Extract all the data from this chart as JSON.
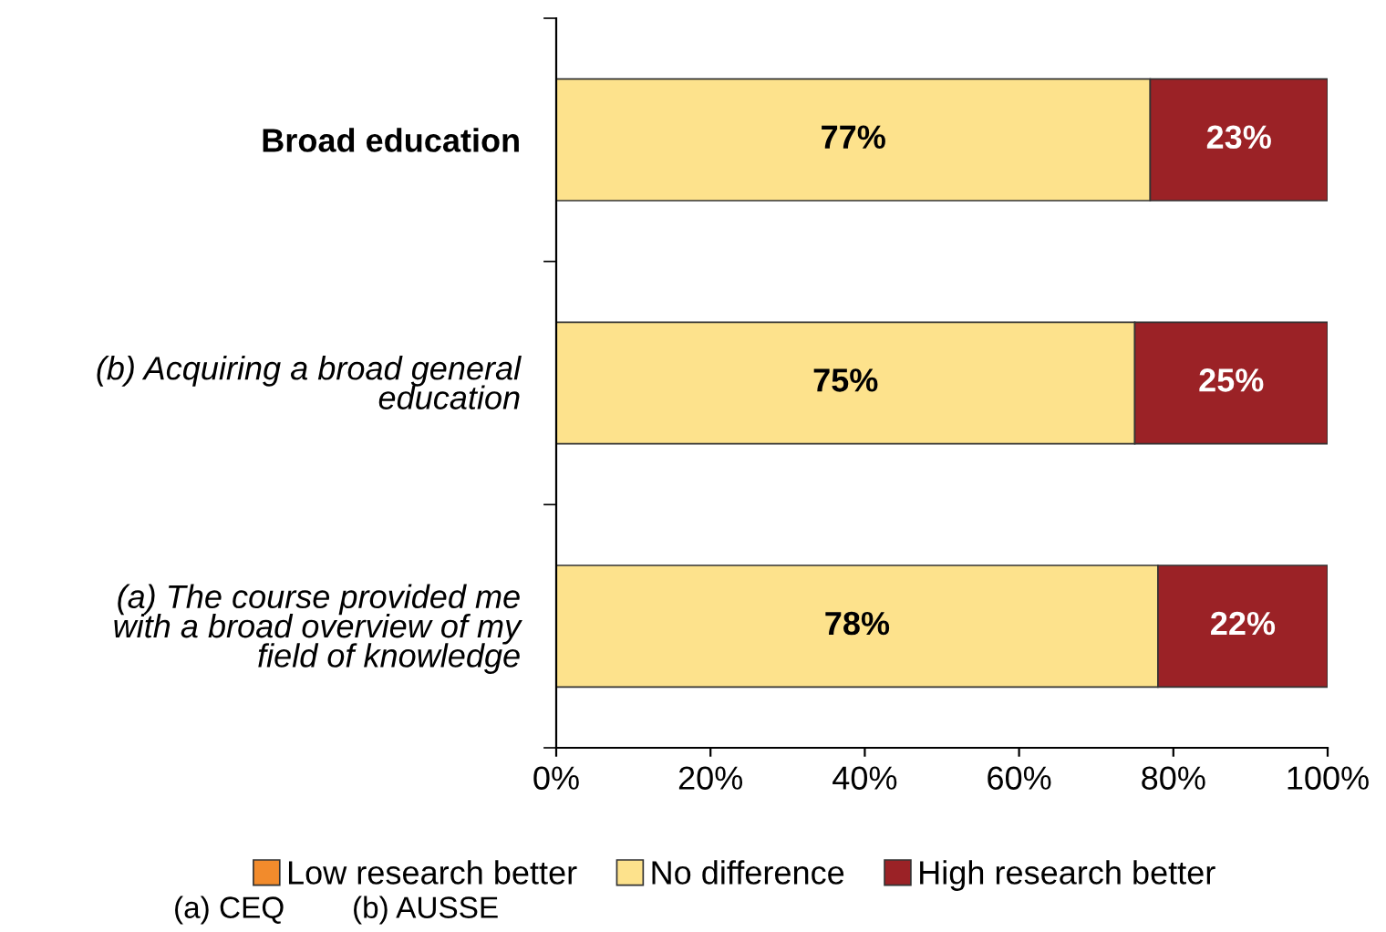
{
  "chart_data": {
    "type": "bar",
    "orientation": "horizontal",
    "stacked": true,
    "categories": [
      "Broad education",
      "(b) Acquiring a broad general\neducation",
      "(a) The course provided me\nwith a broad overview of my\nfield of knowledge"
    ],
    "series": [
      {
        "name": "Low research better",
        "color": "#f28b2c",
        "values": [
          0,
          0,
          0
        ],
        "value_labels": [
          null,
          null,
          null
        ]
      },
      {
        "name": "No difference",
        "color": "#fde28c",
        "values": [
          77,
          75,
          78
        ],
        "value_labels": [
          "77%",
          "75%",
          "78%"
        ]
      },
      {
        "name": "High research better",
        "color": "#9b2226",
        "values": [
          23,
          25,
          22
        ],
        "value_labels": [
          "23%",
          "25%",
          "22%"
        ]
      }
    ],
    "xlim": [
      0,
      100
    ],
    "xticks": [
      {
        "value": 0,
        "label": "0%"
      },
      {
        "value": 20,
        "label": "20%"
      },
      {
        "value": 40,
        "label": "40%"
      },
      {
        "value": 60,
        "label": "60%"
      },
      {
        "value": 80,
        "label": "80%"
      },
      {
        "value": 100,
        "label": "100%"
      }
    ],
    "grid": false,
    "legend": "bottom",
    "annotations": [
      "(a) CEQ",
      "(b) AUSSE"
    ]
  }
}
